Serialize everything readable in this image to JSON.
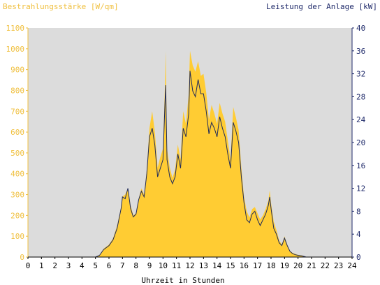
{
  "chart_data": {
    "type": "area",
    "left_axis_title": "Bestrahlungsstärke [W/qm]",
    "right_axis_title": "Leistung der Anlage [kW]",
    "xlabel": "Uhrzeit in Stunden",
    "xlim": [
      0,
      24
    ],
    "x_ticks": [
      "0",
      "1",
      "2",
      "3",
      "4",
      "5",
      "6",
      "7",
      "8",
      "9",
      "10",
      "11",
      "12",
      "13",
      "14",
      "15",
      "16",
      "17",
      "18",
      "19",
      "20",
      "21",
      "22",
      "23",
      "24"
    ],
    "y_left_lim": [
      0,
      1100
    ],
    "y_left_ticks": [
      "0",
      "100",
      "200",
      "300",
      "400",
      "500",
      "600",
      "700",
      "800",
      "900",
      "1000",
      "1100"
    ],
    "y_right_lim": [
      0,
      40
    ],
    "y_right_ticks": [
      "0",
      "4",
      "8",
      "12",
      "16",
      "20",
      "24",
      "28",
      "32",
      "36",
      "40"
    ],
    "grid": false,
    "colors": {
      "plot_background": "#dcdcdc",
      "irradiance_fill": "#ffcc33",
      "power_line": "#1f2a5a",
      "left_axis": "#f0c040",
      "right_axis": "#1f2a6a"
    },
    "series": [
      {
        "axis": "left",
        "style": "area",
        "points": [
          [
            0,
            0
          ],
          [
            5,
            0
          ],
          [
            5.3,
            10
          ],
          [
            5.6,
            40
          ],
          [
            6.0,
            60
          ],
          [
            6.3,
            90
          ],
          [
            6.6,
            150
          ],
          [
            6.9,
            240
          ],
          [
            7.0,
            290
          ],
          [
            7.2,
            300
          ],
          [
            7.4,
            330
          ],
          [
            7.6,
            250
          ],
          [
            7.8,
            200
          ],
          [
            8.0,
            210
          ],
          [
            8.2,
            280
          ],
          [
            8.4,
            330
          ],
          [
            8.6,
            300
          ],
          [
            8.8,
            420
          ],
          [
            9.0,
            620
          ],
          [
            9.2,
            700
          ],
          [
            9.4,
            600
          ],
          [
            9.6,
            430
          ],
          [
            9.8,
            480
          ],
          [
            10.0,
            520
          ],
          [
            10.15,
            830
          ],
          [
            10.2,
            990
          ],
          [
            10.3,
            520
          ],
          [
            10.5,
            430
          ],
          [
            10.7,
            380
          ],
          [
            10.9,
            420
          ],
          [
            11.1,
            540
          ],
          [
            11.3,
            470
          ],
          [
            11.5,
            700
          ],
          [
            11.7,
            640
          ],
          [
            11.9,
            780
          ],
          [
            12.0,
            990
          ],
          [
            12.2,
            920
          ],
          [
            12.4,
            890
          ],
          [
            12.6,
            940
          ],
          [
            12.8,
            870
          ],
          [
            13.0,
            880
          ],
          [
            13.2,
            790
          ],
          [
            13.4,
            660
          ],
          [
            13.6,
            730
          ],
          [
            13.8,
            690
          ],
          [
            14.0,
            640
          ],
          [
            14.2,
            740
          ],
          [
            14.4,
            690
          ],
          [
            14.6,
            650
          ],
          [
            14.8,
            560
          ],
          [
            15.0,
            470
          ],
          [
            15.2,
            720
          ],
          [
            15.4,
            670
          ],
          [
            15.6,
            610
          ],
          [
            15.8,
            430
          ],
          [
            16.0,
            290
          ],
          [
            16.2,
            220
          ],
          [
            16.4,
            190
          ],
          [
            16.6,
            230
          ],
          [
            16.8,
            240
          ],
          [
            17.0,
            210
          ],
          [
            17.2,
            180
          ],
          [
            17.4,
            200
          ],
          [
            17.6,
            230
          ],
          [
            17.8,
            270
          ],
          [
            17.9,
            320
          ],
          [
            18.0,
            260
          ],
          [
            18.2,
            170
          ],
          [
            18.4,
            130
          ],
          [
            18.6,
            80
          ],
          [
            18.8,
            60
          ],
          [
            19.0,
            100
          ],
          [
            19.2,
            60
          ],
          [
            19.4,
            30
          ],
          [
            19.6,
            20
          ],
          [
            19.8,
            15
          ],
          [
            20.0,
            10
          ],
          [
            20.3,
            8
          ],
          [
            20.6,
            0
          ],
          [
            24,
            0
          ]
        ]
      },
      {
        "axis": "right",
        "style": "line",
        "points": [
          [
            0,
            0
          ],
          [
            5,
            0
          ],
          [
            5.3,
            0.3
          ],
          [
            5.6,
            1.3
          ],
          [
            6.0,
            2.0
          ],
          [
            6.3,
            3.0
          ],
          [
            6.6,
            5.0
          ],
          [
            6.9,
            8.5
          ],
          [
            7.0,
            10.5
          ],
          [
            7.2,
            10.2
          ],
          [
            7.4,
            12.0
          ],
          [
            7.6,
            8.5
          ],
          [
            7.8,
            7.0
          ],
          [
            8.0,
            7.5
          ],
          [
            8.2,
            10.0
          ],
          [
            8.4,
            11.5
          ],
          [
            8.6,
            10.5
          ],
          [
            8.8,
            14.5
          ],
          [
            9.0,
            21.0
          ],
          [
            9.2,
            22.5
          ],
          [
            9.4,
            19.5
          ],
          [
            9.6,
            14.0
          ],
          [
            9.8,
            15.5
          ],
          [
            10.0,
            17.0
          ],
          [
            10.15,
            27.0
          ],
          [
            10.2,
            30.0
          ],
          [
            10.3,
            17.0
          ],
          [
            10.5,
            14.0
          ],
          [
            10.7,
            12.8
          ],
          [
            10.9,
            14.0
          ],
          [
            11.1,
            18.0
          ],
          [
            11.3,
            15.5
          ],
          [
            11.5,
            22.5
          ],
          [
            11.7,
            21.0
          ],
          [
            11.9,
            25.0
          ],
          [
            12.0,
            32.5
          ],
          [
            12.2,
            29.0
          ],
          [
            12.4,
            28.0
          ],
          [
            12.6,
            31.0
          ],
          [
            12.8,
            28.5
          ],
          [
            13.0,
            28.5
          ],
          [
            13.2,
            25.5
          ],
          [
            13.4,
            21.5
          ],
          [
            13.6,
            23.5
          ],
          [
            13.8,
            22.5
          ],
          [
            14.0,
            21.0
          ],
          [
            14.2,
            24.5
          ],
          [
            14.4,
            22.5
          ],
          [
            14.6,
            21.0
          ],
          [
            14.8,
            18.0
          ],
          [
            15.0,
            15.5
          ],
          [
            15.2,
            23.5
          ],
          [
            15.4,
            22.0
          ],
          [
            15.6,
            20.0
          ],
          [
            15.8,
            14.0
          ],
          [
            16.0,
            9.5
          ],
          [
            16.2,
            6.5
          ],
          [
            16.4,
            6.0
          ],
          [
            16.6,
            7.5
          ],
          [
            16.8,
            8.0
          ],
          [
            17.0,
            6.5
          ],
          [
            17.2,
            5.5
          ],
          [
            17.4,
            6.5
          ],
          [
            17.6,
            7.5
          ],
          [
            17.8,
            9.0
          ],
          [
            17.9,
            10.5
          ],
          [
            18.0,
            8.5
          ],
          [
            18.2,
            5.0
          ],
          [
            18.4,
            4.0
          ],
          [
            18.6,
            2.5
          ],
          [
            18.8,
            2.0
          ],
          [
            19.0,
            3.3
          ],
          [
            19.2,
            2.0
          ],
          [
            19.4,
            1.0
          ],
          [
            19.6,
            0.6
          ],
          [
            19.8,
            0.4
          ],
          [
            20.0,
            0.3
          ],
          [
            20.3,
            0.2
          ],
          [
            20.6,
            0
          ],
          [
            24,
            0
          ]
        ]
      }
    ]
  }
}
